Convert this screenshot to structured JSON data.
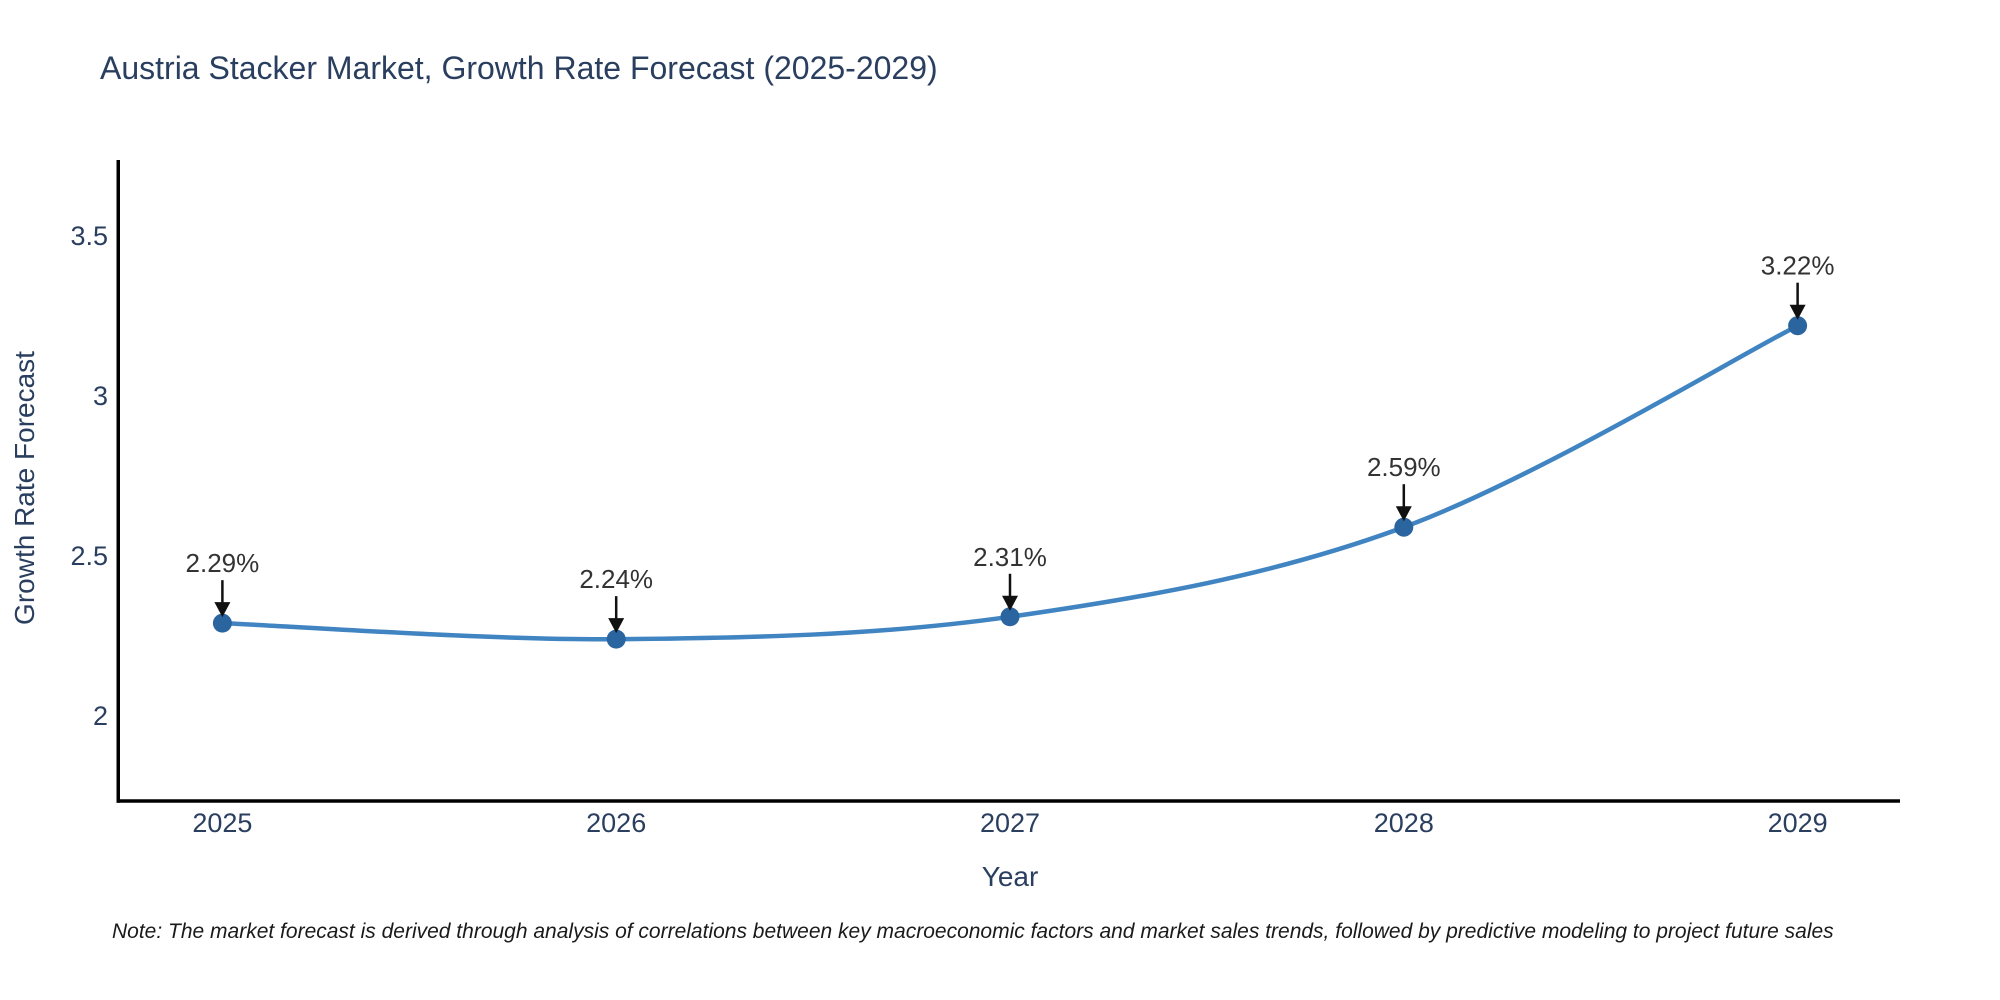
{
  "title": "Austria Stacker Market, Growth Rate Forecast (2025-2029)",
  "note": "Note: The market forecast is derived through analysis of correlations between key macroeconomic factors and market sales trends, followed by predictive modeling to project future sales",
  "chart_data": {
    "type": "line",
    "line_shape": "spline",
    "title": "Austria Stacker Market, Growth Rate Forecast (2025-2029)",
    "xlabel": "Year",
    "ylabel": "Growth Rate Forecast",
    "x": [
      2025,
      2026,
      2027,
      2028,
      2029
    ],
    "values": [
      2.29,
      2.24,
      2.31,
      2.59,
      3.22
    ],
    "point_labels": [
      "2.29%",
      "2.24%",
      "2.31%",
      "2.59%",
      "3.22%"
    ],
    "xticks": [
      2025,
      2026,
      2027,
      2028,
      2029
    ],
    "yticks": [
      2,
      2.5,
      3,
      3.5
    ],
    "xlim": [
      2024.74,
      2029.26
    ],
    "ylim": [
      1.734,
      3.738
    ],
    "grid": false,
    "legend": "none",
    "annotations_arrow": "down-arrow-to-point",
    "colors": {
      "line": "#4084c2",
      "marker": "#2b65a0",
      "axis": "#000000",
      "tick_text": "#2a3f5f",
      "annotation_text": "#333333",
      "arrow": "#111111",
      "background": "#ffffff"
    }
  }
}
